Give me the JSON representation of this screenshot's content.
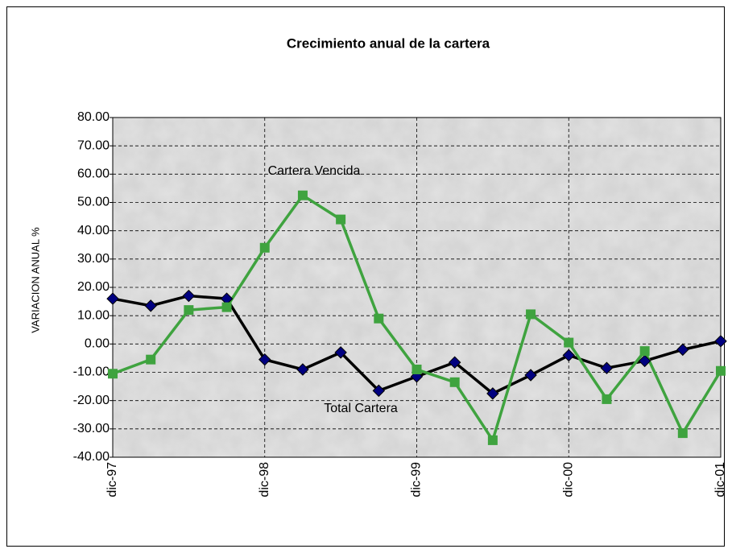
{
  "chart_data": {
    "type": "line",
    "title": "Crecimiento anual de la cartera",
    "y_label": "VARIACION ANUAL  %",
    "categories": [
      "dic-97",
      null,
      null,
      null,
      "dic-98",
      null,
      null,
      null,
      "dic-99",
      null,
      null,
      null,
      "dic-00",
      null,
      null,
      null,
      "dic-01"
    ],
    "series": [
      {
        "name": "Total Cartera",
        "color": "#000000",
        "marker_color": "#000080",
        "marker": "diamond",
        "values": [
          16,
          13.5,
          17,
          16,
          -5.5,
          -9,
          -3,
          -16.5,
          -11.5,
          -6.5,
          -17.5,
          -11,
          -4,
          -8.5,
          -6,
          -2,
          1
        ]
      },
      {
        "name": "Cartera Vencida",
        "color": "#3fa33f",
        "marker_color": "#3fa33f",
        "marker": "square",
        "values": [
          -10.5,
          -5.5,
          12,
          13,
          34,
          52.5,
          44,
          9,
          -9,
          -13.5,
          -34,
          10.5,
          0.5,
          -19.5,
          -2.5,
          -31.5,
          -9.5
        ]
      }
    ],
    "ylim": [
      -40,
      80
    ],
    "yticks": [
      {
        "value": -40,
        "label": "-40.00"
      },
      {
        "value": -30,
        "label": "-30.00"
      },
      {
        "value": -20,
        "label": "-20.00"
      },
      {
        "value": -10,
        "label": "-10.00"
      },
      {
        "value": 0,
        "label": "0.00"
      },
      {
        "value": 10,
        "label": "10.00"
      },
      {
        "value": 20,
        "label": "20.00"
      },
      {
        "value": 30,
        "label": "30.00"
      },
      {
        "value": 40,
        "label": "40.00"
      },
      {
        "value": 50,
        "label": "50.00"
      },
      {
        "value": 60,
        "label": "60.00"
      },
      {
        "value": 70,
        "label": "70.00"
      },
      {
        "value": 80,
        "label": "80.00"
      }
    ],
    "grid": true
  }
}
